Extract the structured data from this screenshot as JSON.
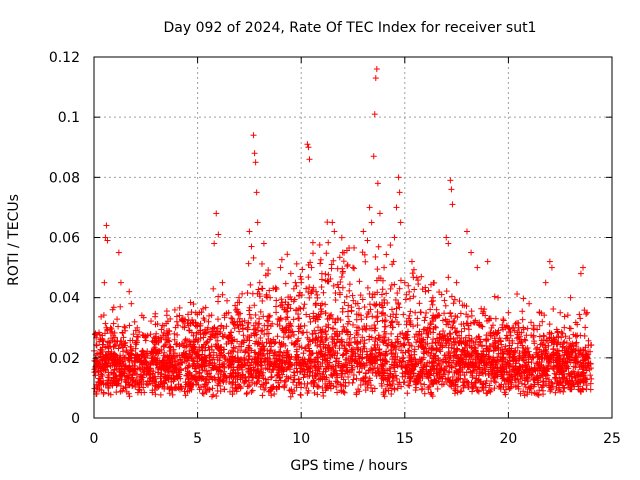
{
  "chart_data": {
    "type": "scatter",
    "title": "Day 092 of 2024, Rate Of TEC Index for receiver sut1",
    "xlabel": "GPS time / hours",
    "ylabel": "ROTI / TECUs",
    "xlim": [
      0,
      25
    ],
    "ylim": [
      0,
      0.12
    ],
    "xticks": [
      0,
      5,
      10,
      15,
      20,
      25
    ],
    "xtick_labels": [
      "0",
      "5",
      "10",
      "15",
      "20",
      "25"
    ],
    "yticks": [
      0,
      0.02,
      0.04,
      0.06,
      0.08,
      0.1,
      0.12
    ],
    "ytick_labels": [
      "0",
      "0.02",
      "0.04",
      "0.06",
      "0.08",
      "0.1",
      "0.12"
    ],
    "grid": true,
    "marker": "+",
    "marker_color": "#ff0000",
    "point_count": "dense (approx. thousands of samples, 0–24 h)",
    "series": [
      {
        "name": "sut1",
        "points": [
          [
            0.1,
            0.008
          ],
          [
            0.2,
            0.012
          ],
          [
            0.3,
            0.018
          ],
          [
            0.4,
            0.022
          ],
          [
            0.5,
            0.045
          ],
          [
            0.55,
            0.06
          ],
          [
            0.6,
            0.064
          ],
          [
            0.65,
            0.059
          ],
          [
            0.8,
            0.03
          ],
          [
            0.9,
            0.036
          ],
          [
            1.0,
            0.02
          ],
          [
            1.2,
            0.055
          ],
          [
            1.3,
            0.045
          ],
          [
            1.5,
            0.03
          ],
          [
            1.7,
            0.042
          ],
          [
            1.8,
            0.038
          ],
          [
            2.0,
            0.025
          ],
          [
            2.5,
            0.02
          ],
          [
            3.0,
            0.028
          ],
          [
            3.5,
            0.018
          ],
          [
            4.0,
            0.032
          ],
          [
            4.5,
            0.02
          ],
          [
            5.0,
            0.022
          ],
          [
            5.5,
            0.03
          ],
          [
            5.8,
            0.058
          ],
          [
            5.9,
            0.068
          ],
          [
            6.0,
            0.061
          ],
          [
            6.2,
            0.045
          ],
          [
            6.5,
            0.035
          ],
          [
            7.0,
            0.04
          ],
          [
            7.5,
            0.062
          ],
          [
            7.6,
            0.057
          ],
          [
            7.7,
            0.094
          ],
          [
            7.75,
            0.088
          ],
          [
            7.8,
            0.085
          ],
          [
            7.85,
            0.075
          ],
          [
            7.9,
            0.065
          ],
          [
            8.0,
            0.045
          ],
          [
            8.2,
            0.058
          ],
          [
            8.5,
            0.04
          ],
          [
            9.0,
            0.05
          ],
          [
            9.5,
            0.048
          ],
          [
            10.0,
            0.045
          ],
          [
            10.3,
            0.091
          ],
          [
            10.35,
            0.09
          ],
          [
            10.4,
            0.086
          ],
          [
            10.5,
            0.05
          ],
          [
            11.0,
            0.048
          ],
          [
            11.5,
            0.065
          ],
          [
            11.6,
            0.062
          ],
          [
            12.0,
            0.055
          ],
          [
            12.5,
            0.05
          ],
          [
            13.0,
            0.062
          ],
          [
            13.2,
            0.059
          ],
          [
            13.3,
            0.07
          ],
          [
            13.4,
            0.065
          ],
          [
            13.5,
            0.087
          ],
          [
            13.55,
            0.101
          ],
          [
            13.6,
            0.113
          ],
          [
            13.65,
            0.116
          ],
          [
            13.7,
            0.078
          ],
          [
            13.8,
            0.068
          ],
          [
            14.0,
            0.05
          ],
          [
            14.5,
            0.06
          ],
          [
            14.6,
            0.07
          ],
          [
            14.7,
            0.08
          ],
          [
            14.75,
            0.075
          ],
          [
            14.8,
            0.065
          ],
          [
            15.0,
            0.045
          ],
          [
            15.5,
            0.035
          ],
          [
            16.0,
            0.042
          ],
          [
            16.5,
            0.03
          ],
          [
            17.0,
            0.06
          ],
          [
            17.1,
            0.058
          ],
          [
            17.2,
            0.079
          ],
          [
            17.25,
            0.076
          ],
          [
            17.3,
            0.071
          ],
          [
            17.5,
            0.045
          ],
          [
            18.0,
            0.062
          ],
          [
            18.2,
            0.055
          ],
          [
            18.5,
            0.05
          ],
          [
            19.0,
            0.052
          ],
          [
            19.5,
            0.04
          ],
          [
            20.0,
            0.035
          ],
          [
            20.5,
            0.03
          ],
          [
            21.0,
            0.038
          ],
          [
            21.5,
            0.035
          ],
          [
            21.8,
            0.045
          ],
          [
            22.0,
            0.052
          ],
          [
            22.1,
            0.05
          ],
          [
            22.5,
            0.035
          ],
          [
            23.0,
            0.04
          ],
          [
            23.5,
            0.048
          ],
          [
            23.6,
            0.05
          ],
          [
            23.8,
            0.035
          ],
          [
            24.0,
            0.013
          ]
        ]
      }
    ]
  }
}
